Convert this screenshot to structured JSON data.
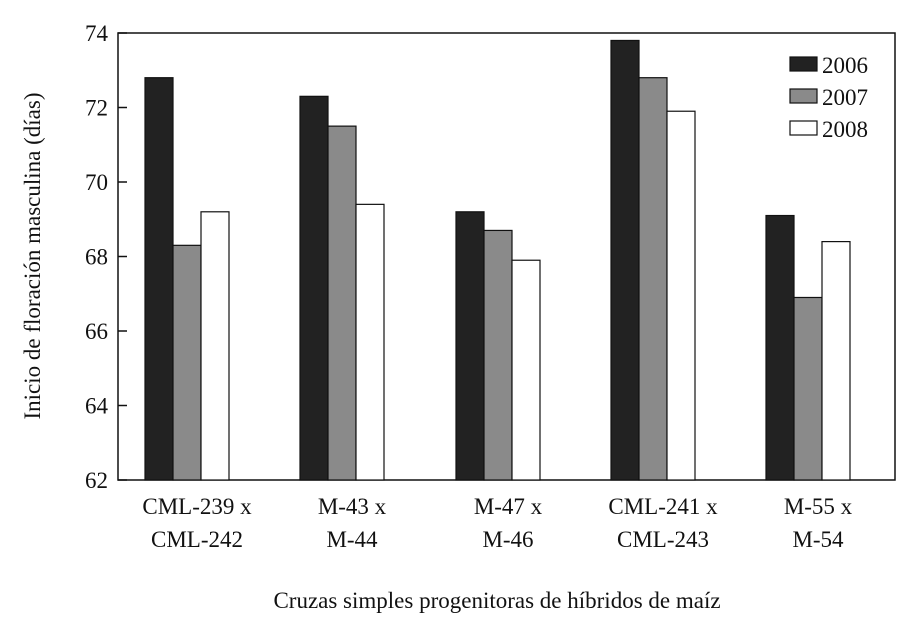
{
  "chart_data": {
    "type": "bar",
    "title": "",
    "xlabel": "Cruzas simples progenitoras de híbridos de maíz",
    "ylabel": "Inicio de floración masculina (días)",
    "ylim": [
      62,
      74
    ],
    "yticks": [
      62,
      64,
      66,
      68,
      70,
      72,
      74
    ],
    "ytick_labels": [
      "62",
      "64",
      "66",
      "68",
      "70",
      "72",
      "74"
    ],
    "grid": false,
    "legend_position": "top-right",
    "categories": [
      [
        "CML-239 x",
        "CML-242"
      ],
      [
        "M-43 x",
        "M-44"
      ],
      [
        "M-47 x",
        "M-46"
      ],
      [
        "CML-241 x",
        "CML-243"
      ],
      [
        "M-55 x",
        "M-54"
      ]
    ],
    "series": [
      {
        "name": "2006",
        "color": "#222222",
        "values": [
          72.8,
          72.3,
          69.2,
          73.8,
          69.1
        ]
      },
      {
        "name": "2007",
        "color": "#8a8a8a",
        "values": [
          68.3,
          71.5,
          68.7,
          72.8,
          66.9
        ]
      },
      {
        "name": "2008",
        "color": "#ffffff",
        "values": [
          69.2,
          69.4,
          67.9,
          71.9,
          68.4
        ]
      }
    ]
  }
}
